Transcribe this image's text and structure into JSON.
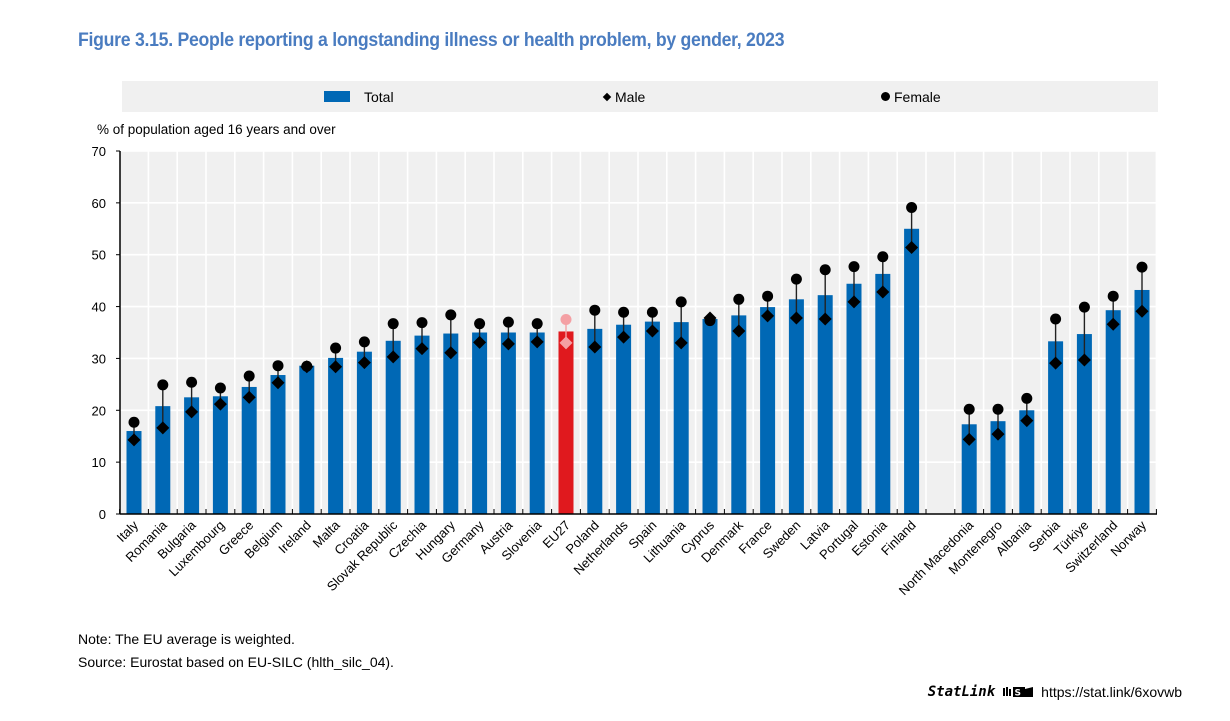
{
  "figure": {
    "title": "Figure 3.15. People reporting a longstanding illness or health problem, by gender, 2023",
    "note": "Note: The EU average is weighted.",
    "source": "Source: Eurostat based on EU-SILC (hlth_silc_04).",
    "statlink_brand": "StatLink",
    "statlink_url": "https://stat.link/6xovwb"
  },
  "colors": {
    "total_bar": "#0068b5",
    "highlight_bar": "#e0191e",
    "highlight_marker": "#f4a0a4",
    "marker": "#000000",
    "plot_bg": "#f0f0f0",
    "grid": "#ffffff"
  },
  "chart_data": {
    "type": "bar",
    "title": "People reporting a longstanding illness or health problem, by gender, 2023",
    "ylabel": "% of population aged 16 years and over",
    "xlabel": "",
    "ylim": [
      0,
      70
    ],
    "yticks": [
      0,
      10,
      20,
      30,
      40,
      50,
      60,
      70
    ],
    "grid": true,
    "legend_position": "top",
    "legend": [
      "Total",
      "Male",
      "Female"
    ],
    "highlight": "EU27",
    "gap_after": "Finland",
    "categories": [
      "Italy",
      "Romania",
      "Bulgaria",
      "Luxembourg",
      "Greece",
      "Belgium",
      "Ireland",
      "Malta",
      "Croatia",
      "Slovak Republic",
      "Czechia",
      "Hungary",
      "Germany",
      "Austria",
      "Slovenia",
      "EU27",
      "Poland",
      "Netherlands",
      "Spain",
      "Lithuania",
      "Cyprus",
      "Denmark",
      "France",
      "Sweden",
      "Latvia",
      "Portugal",
      "Estonia",
      "Finland",
      "North Macedonia",
      "Montenegro",
      "Albania",
      "Serbia",
      "Türkiye",
      "Switzerland",
      "Norway"
    ],
    "series": [
      {
        "name": "Total",
        "type": "bar",
        "values": [
          16.0,
          20.8,
          22.5,
          22.7,
          24.5,
          26.8,
          28.6,
          30.1,
          31.3,
          33.4,
          34.4,
          34.8,
          35.0,
          35.0,
          35.0,
          35.2,
          35.7,
          36.5,
          37.1,
          37.0,
          37.6,
          38.3,
          39.9,
          41.4,
          42.2,
          44.4,
          46.3,
          55.0,
          17.3,
          17.9,
          20.0,
          33.3,
          34.7,
          39.3,
          43.2
        ]
      },
      {
        "name": "Male",
        "type": "diamond",
        "values": [
          14.3,
          16.6,
          19.7,
          21.2,
          22.5,
          25.3,
          28.4,
          28.4,
          29.2,
          30.3,
          31.9,
          31.1,
          33.1,
          32.8,
          33.2,
          33.0,
          32.2,
          34.1,
          35.3,
          33.0,
          37.8,
          35.3,
          38.2,
          37.8,
          37.6,
          40.9,
          42.8,
          51.4,
          14.4,
          15.4,
          18.0,
          29.1,
          29.7,
          36.6,
          39.1
        ]
      },
      {
        "name": "Female",
        "type": "circle",
        "values": [
          17.7,
          24.9,
          25.4,
          24.3,
          26.6,
          28.6,
          28.5,
          32.0,
          33.2,
          36.7,
          36.9,
          38.4,
          36.7,
          37.0,
          36.7,
          37.5,
          39.3,
          38.9,
          38.9,
          40.9,
          37.3,
          41.4,
          42.0,
          45.3,
          47.1,
          47.7,
          49.6,
          59.1,
          20.2,
          20.2,
          22.3,
          37.6,
          39.9,
          42.0,
          47.6
        ]
      }
    ]
  }
}
